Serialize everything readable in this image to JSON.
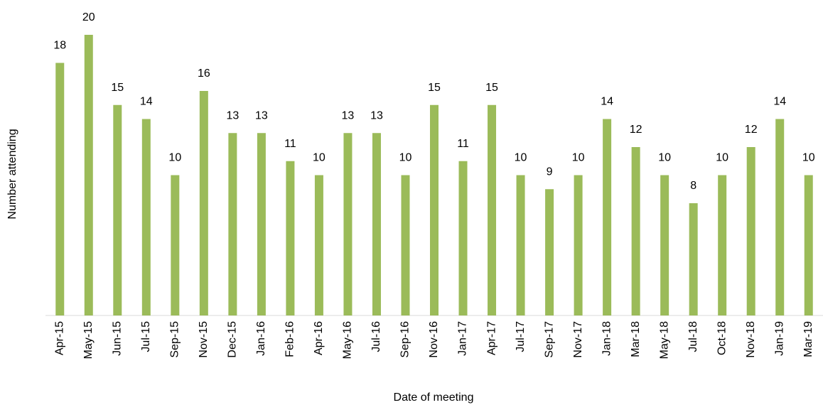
{
  "chart_data": {
    "type": "bar",
    "x_label": "Date of meeting",
    "y_label": "Number attending",
    "categories": [
      "Apr-15",
      "May-15",
      "Jun-15",
      "Jul-15",
      "Sep-15",
      "Nov-15",
      "Dec-15",
      "Jan-16",
      "Feb-16",
      "Apr-16",
      "May-16",
      "Jul-16",
      "Sep-16",
      "Nov-16",
      "Jan-17",
      "Apr-17",
      "Jul-17",
      "Sep-17",
      "Nov-17",
      "Jan-18",
      "Mar-18",
      "May-18",
      "Jul-18",
      "Oct-18",
      "Nov-18",
      "Jan-19",
      "Mar-19"
    ],
    "values": [
      18,
      20,
      15,
      14,
      10,
      16,
      13,
      13,
      11,
      10,
      13,
      13,
      10,
      15,
      11,
      15,
      10,
      9,
      10,
      14,
      12,
      10,
      8,
      10,
      12,
      14,
      10
    ],
    "color": "#9bbb59",
    "ylim": [
      0,
      20
    ]
  }
}
